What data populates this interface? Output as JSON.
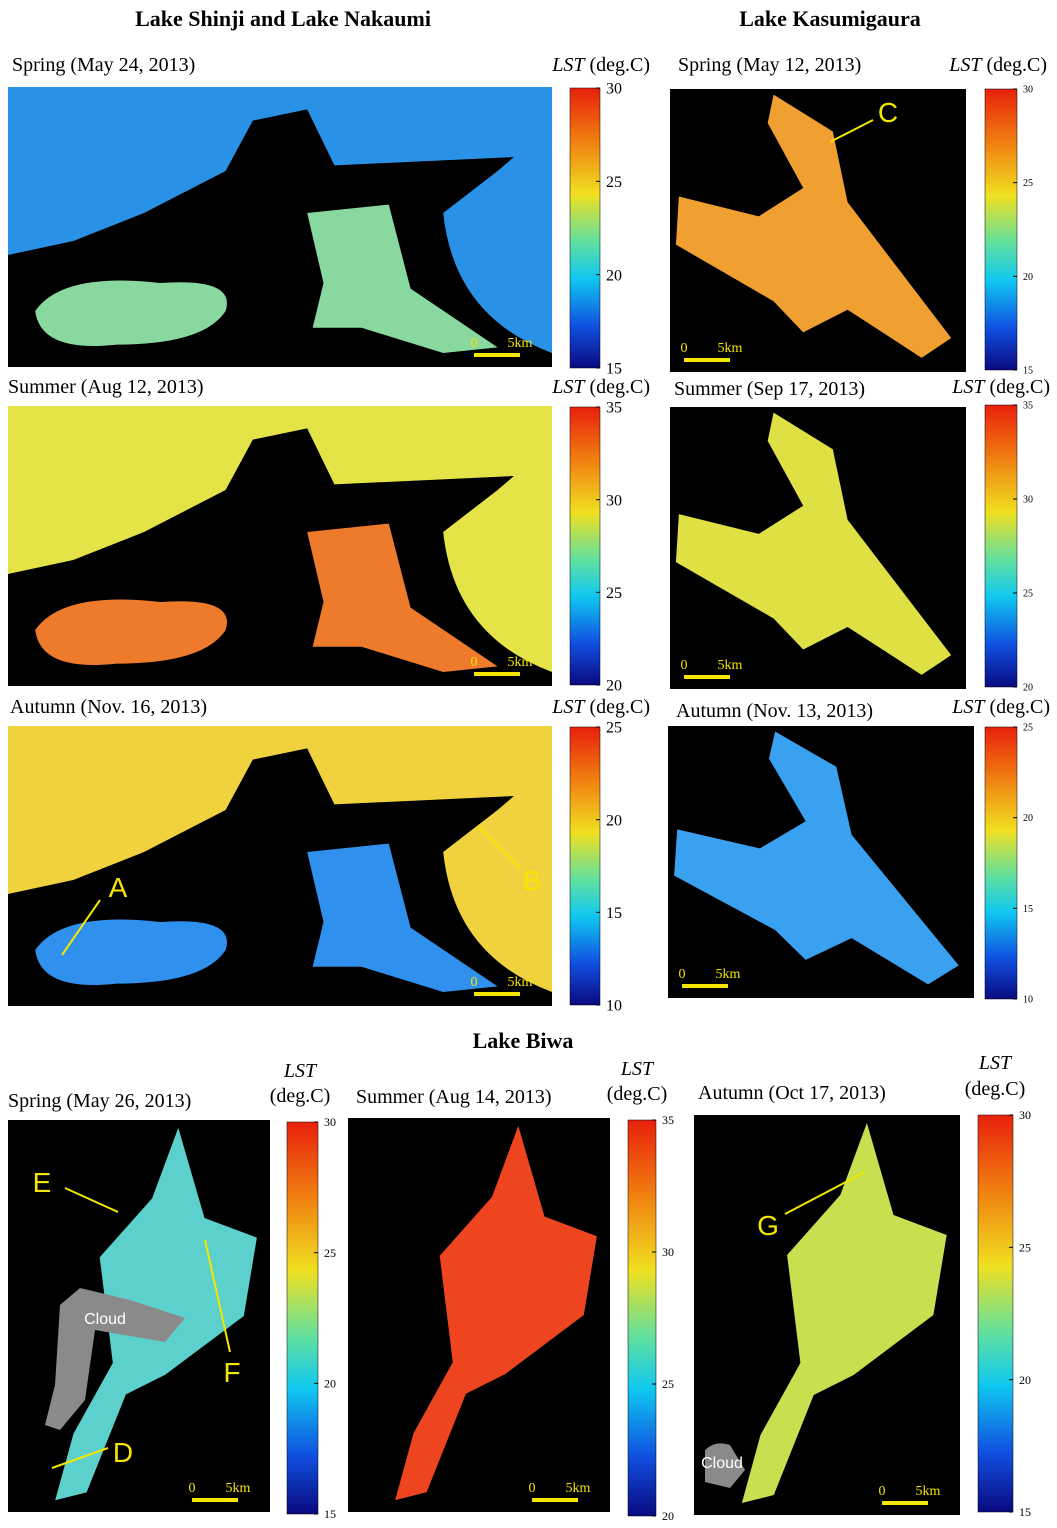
{
  "sections": [
    {
      "title": "Lake Shinji and Lake Nakaumi",
      "panels": [
        {
          "label": "Spring (May 24, 2013)",
          "colorbar_ticks": [
            30,
            25,
            20,
            15
          ]
        },
        {
          "label": "Summer (Aug 12, 2013)",
          "colorbar_ticks": [
            35,
            30,
            25,
            20
          ]
        },
        {
          "label": "Autumn (Nov. 16, 2013)",
          "colorbar_ticks": [
            25,
            20,
            15,
            10
          ],
          "annotations": [
            "A",
            "B"
          ]
        }
      ]
    },
    {
      "title": "Lake Kasumigaura",
      "panels": [
        {
          "label": "Spring (May 12, 2013)",
          "colorbar_ticks": [
            30,
            25,
            20,
            15
          ],
          "annotations": [
            "C"
          ]
        },
        {
          "label": "Summer (Sep 17, 2013)",
          "colorbar_ticks": [
            35,
            30,
            25,
            20
          ]
        },
        {
          "label": "Autumn (Nov. 13, 2013)",
          "colorbar_ticks": [
            25,
            20,
            15,
            10
          ]
        }
      ]
    },
    {
      "title": "Lake Biwa",
      "panels": [
        {
          "label": "Spring (May 26, 2013)",
          "colorbar_ticks": [
            30,
            25,
            20,
            15
          ],
          "annotations": [
            "E",
            "F",
            "D"
          ],
          "cloud": "Cloud"
        },
        {
          "label": "Summer (Aug 14, 2013)",
          "colorbar_ticks": [
            35,
            30,
            25,
            20
          ]
        },
        {
          "label": "Autumn (Oct 17, 2013)",
          "colorbar_ticks": [
            30,
            25,
            20,
            15
          ],
          "annotations": [
            "G"
          ],
          "cloud": "Cloud"
        }
      ]
    }
  ],
  "lst_label": {
    "symbol": "LST",
    "unit": "(deg.C)"
  },
  "scale_bar": {
    "start": "0",
    "end": "5km"
  }
}
